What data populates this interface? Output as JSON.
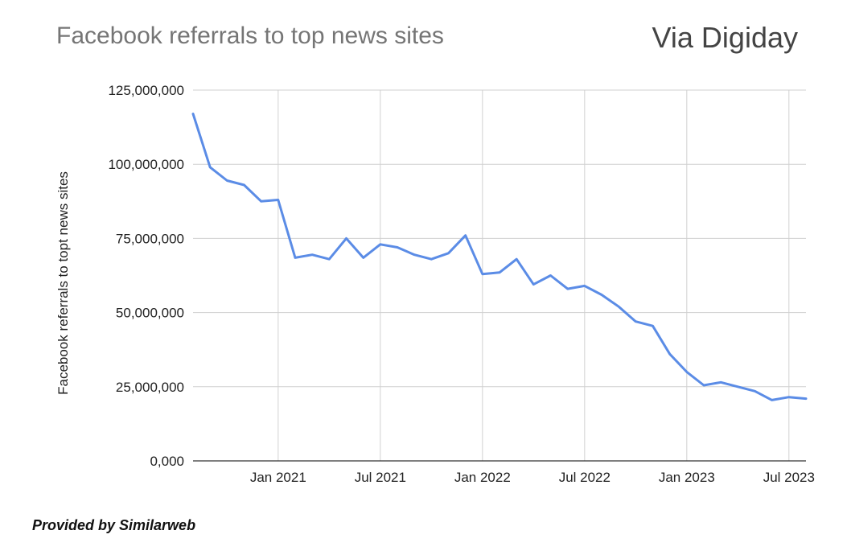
{
  "chart_data": {
    "type": "line",
    "title": "Facebook referrals to top news sites",
    "source_label": "Via Digiday",
    "footer": "Provided by Similarweb",
    "ylabel": "Facebook referrals to topt news sites",
    "xlabel": "",
    "ylim": [
      0,
      125000000
    ],
    "y_ticks": [
      {
        "value": 0,
        "label": "0,000"
      },
      {
        "value": 25000000,
        "label": "25,000,000"
      },
      {
        "value": 50000000,
        "label": "50,000,000"
      },
      {
        "value": 75000000,
        "label": "75,000,000"
      },
      {
        "value": 100000000,
        "label": "100,000,000"
      },
      {
        "value": 125000000,
        "label": "125,000,000"
      }
    ],
    "x_ticks": [
      {
        "index": 5,
        "label": "Jan 2021"
      },
      {
        "index": 11,
        "label": "Jul 2021"
      },
      {
        "index": 17,
        "label": "Jan 2022"
      },
      {
        "index": 23,
        "label": "Jul 2022"
      },
      {
        "index": 29,
        "label": "Jan 2023"
      },
      {
        "index": 35,
        "label": "Jul 2023"
      }
    ],
    "x": [
      "2020-08",
      "2020-09",
      "2020-10",
      "2020-11",
      "2020-12",
      "2021-01",
      "2021-02",
      "2021-03",
      "2021-04",
      "2021-05",
      "2021-06",
      "2021-07",
      "2021-08",
      "2021-09",
      "2021-10",
      "2021-11",
      "2021-12",
      "2022-01",
      "2022-02",
      "2022-03",
      "2022-04",
      "2022-05",
      "2022-06",
      "2022-07",
      "2022-08",
      "2022-09",
      "2022-10",
      "2022-11",
      "2022-12",
      "2023-01",
      "2023-02",
      "2023-03",
      "2023-04",
      "2023-05",
      "2023-06",
      "2023-07",
      "2023-08"
    ],
    "series": [
      {
        "color": "#5b8ce6",
        "values": [
          117000000,
          99000000,
          94500000,
          93000000,
          87500000,
          88000000,
          68500000,
          69500000,
          68000000,
          75000000,
          68500000,
          73000000,
          72000000,
          69500000,
          68000000,
          70000000,
          76000000,
          63000000,
          63500000,
          68000000,
          59500000,
          62500000,
          58000000,
          59000000,
          56000000,
          52000000,
          47000000,
          45500000,
          36000000,
          30000000,
          25500000,
          26500000,
          25000000,
          23500000,
          20500000,
          21500000,
          21000000
        ]
      }
    ],
    "grid": true,
    "legend": "none"
  }
}
